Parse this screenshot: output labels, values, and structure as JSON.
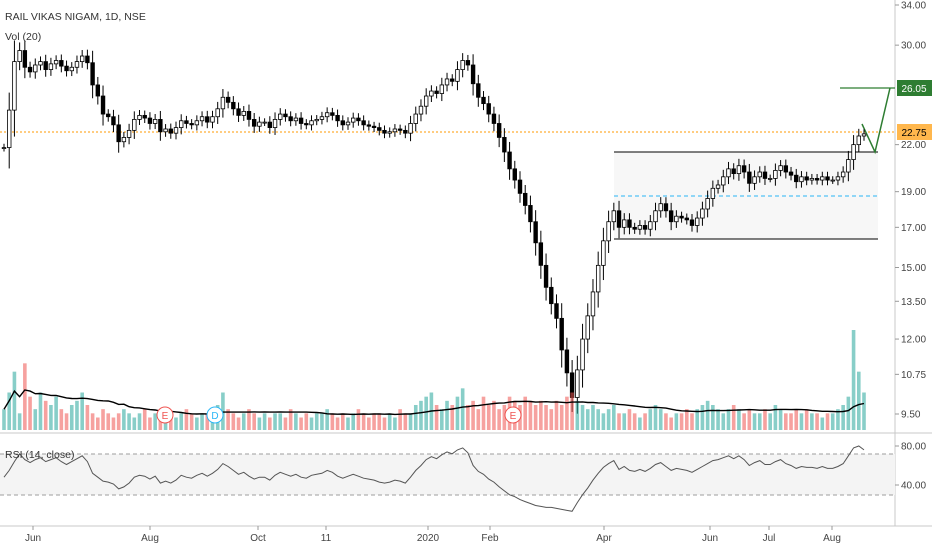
{
  "symbol_line": "RAIL VIKAS NIGAM, 1D, NSE",
  "volume_label": "Vol (20)",
  "rsi_label": "RSI (14, close)",
  "colors": {
    "up": "#26a69a",
    "down": "#ef5350",
    "candle": "#000000",
    "support_line": "#ff9800",
    "target_line": "#2e7d32",
    "box_line": "#000000",
    "mid_line": "#29b6f6",
    "rsi_line": "#555555",
    "badge_current": "#ffb74d",
    "badge_target": "#2e7d32"
  },
  "chart_data": {
    "type": "candlestick",
    "price_axis": {
      "ticks": [
        "34.00",
        "30.00",
        "26.05",
        "22.75",
        "22.00",
        "19.00",
        "17.00",
        "15.00",
        "13.50",
        "12.00",
        "10.75",
        "9.50"
      ],
      "scale": "log",
      "range": [
        9.1,
        34.5
      ]
    },
    "x_labels": [
      "Jun",
      "Aug",
      "Oct",
      "11",
      "2020",
      "Feb",
      "Apr",
      "Jun",
      "Jul",
      "Aug"
    ],
    "price_badges": {
      "target": "26.05",
      "current": "22.75"
    },
    "closes": [
      21.8,
      24.5,
      28.5,
      29.5,
      28.0,
      27.6,
      28.2,
      28.5,
      27.8,
      28.3,
      28.6,
      28.1,
      27.7,
      28.0,
      28.5,
      29.0,
      28.4,
      26.5,
      25.6,
      24.2,
      24.0,
      23.4,
      22.2,
      22.5,
      23.0,
      23.8,
      24.1,
      23.9,
      23.5,
      23.8,
      22.9,
      23.1,
      22.8,
      23.2,
      23.7,
      23.5,
      23.4,
      23.7,
      24.0,
      23.6,
      24.0,
      24.6,
      25.5,
      25.1,
      24.6,
      24.1,
      24.4,
      23.8,
      23.3,
      23.6,
      23.6,
      23.2,
      23.8,
      24.2,
      24.0,
      23.7,
      23.9,
      23.5,
      23.4,
      23.7,
      23.8,
      24.0,
      24.3,
      24.1,
      23.7,
      23.4,
      23.6,
      23.9,
      23.7,
      23.4,
      23.3,
      23.2,
      23.0,
      22.8,
      22.9,
      23.1,
      23.0,
      22.8,
      23.5,
      24.2,
      24.8,
      25.6,
      26.0,
      25.8,
      26.5,
      27.0,
      26.8,
      27.8,
      28.6,
      28.2,
      26.6,
      25.5,
      25.0,
      24.2,
      23.5,
      22.5,
      21.5,
      20.4,
      19.7,
      18.9,
      18.2,
      17.3,
      16.2,
      15.1,
      14.1,
      13.4,
      12.8,
      11.6,
      10.8,
      10.0,
      10.9,
      12.0,
      12.9,
      13.9,
      15.1,
      16.3,
      17.3,
      17.9,
      17.0,
      17.4,
      17.0,
      16.9,
      17.1,
      16.9,
      17.3,
      17.9,
      18.3,
      17.9,
      17.3,
      17.6,
      17.5,
      17.4,
      17.1,
      17.5,
      18.0,
      18.6,
      19.2,
      19.4,
      19.9,
      20.4,
      20.1,
      20.6,
      20.2,
      19.5,
      19.9,
      20.2,
      19.8,
      19.8,
      20.3,
      20.6,
      20.2,
      20.0,
      19.6,
      19.9,
      19.7,
      19.8,
      19.7,
      19.9,
      19.7,
      19.7,
      19.9,
      20.2,
      21.0,
      22.0,
      22.6,
      22.75
    ],
    "volume": [
      5,
      9,
      14,
      4,
      16,
      8,
      5,
      9,
      7,
      6,
      8,
      5,
      4,
      6,
      7,
      9,
      6,
      4,
      3,
      5,
      4,
      3,
      4,
      5,
      4,
      3,
      4,
      5,
      3,
      4,
      3,
      4,
      4,
      3,
      4,
      5,
      4,
      3,
      4,
      4,
      5,
      6,
      9,
      5,
      4,
      3,
      4,
      5,
      4,
      3,
      4,
      3,
      4,
      4,
      3,
      5,
      4,
      3,
      4,
      3,
      4,
      4,
      5,
      4,
      3,
      4,
      3,
      4,
      5,
      4,
      3,
      4,
      4,
      3,
      4,
      3,
      5,
      4,
      4,
      6,
      7,
      8,
      9,
      6,
      5,
      7,
      6,
      8,
      10,
      6,
      7,
      5,
      8,
      6,
      7,
      5,
      6,
      8,
      7,
      6,
      8,
      7,
      6,
      7,
      6,
      5,
      7,
      6,
      8,
      9,
      7,
      6,
      5,
      6,
      5,
      4,
      5,
      6,
      4,
      4,
      5,
      4,
      3,
      4,
      5,
      6,
      5,
      4,
      3,
      4,
      4,
      5,
      4,
      5,
      6,
      7,
      6,
      5,
      4,
      5,
      6,
      5,
      4,
      5,
      4,
      4,
      5,
      4,
      6,
      5,
      4,
      4,
      5,
      4,
      5,
      4,
      4,
      3,
      4,
      4,
      5,
      6,
      8,
      24,
      14,
      9
    ],
    "rsi_axis": {
      "ticks": [
        "80.00",
        "40.00"
      ],
      "overbought": 70,
      "oversold": 30
    },
    "rsi": [
      48,
      55,
      64,
      72,
      66,
      63,
      66,
      68,
      64,
      66,
      68,
      64,
      61,
      64,
      67,
      70,
      64,
      52,
      48,
      44,
      43,
      41,
      36,
      38,
      42,
      48,
      50,
      49,
      46,
      49,
      42,
      44,
      42,
      45,
      50,
      48,
      47,
      50,
      52,
      49,
      52,
      56,
      62,
      59,
      55,
      51,
      53,
      49,
      46,
      48,
      48,
      45,
      50,
      53,
      51,
      49,
      51,
      48,
      47,
      50,
      51,
      52,
      55,
      53,
      49,
      47,
      49,
      51,
      49,
      47,
      46,
      45,
      43,
      42,
      43,
      45,
      44,
      42,
      48,
      55,
      60,
      66,
      69,
      67,
      71,
      74,
      72,
      76,
      78,
      73,
      60,
      54,
      51,
      46,
      43,
      38,
      34,
      30,
      28,
      25,
      23,
      21,
      19,
      18,
      17,
      17,
      16,
      15,
      14,
      13,
      22,
      30,
      37,
      45,
      52,
      58,
      62,
      65,
      56,
      59,
      55,
      54,
      56,
      54,
      57,
      61,
      63,
      59,
      55,
      57,
      56,
      55,
      53,
      56,
      59,
      62,
      65,
      66,
      68,
      70,
      67,
      70,
      66,
      60,
      63,
      65,
      61,
      61,
      64,
      66,
      62,
      60,
      57,
      59,
      58,
      58,
      57,
      59,
      57,
      57,
      59,
      62,
      70,
      78,
      80,
      76
    ]
  }
}
